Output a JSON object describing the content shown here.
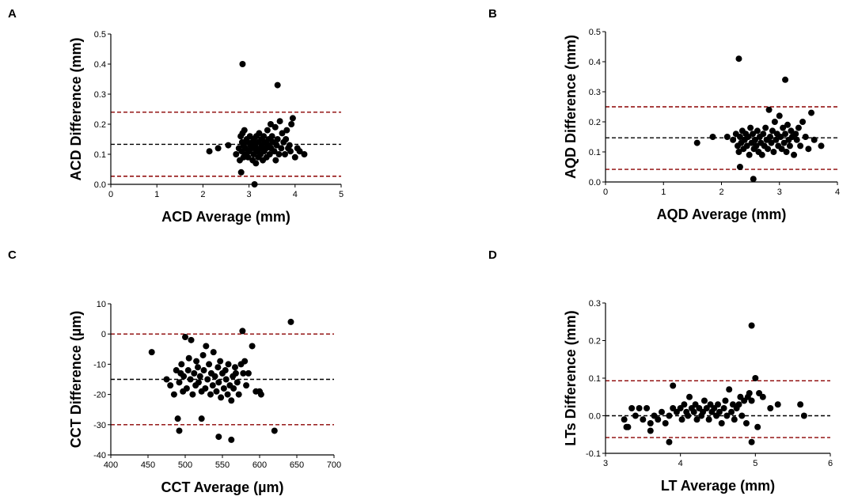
{
  "colors": {
    "points": "#000000",
    "mean_line": "#000000",
    "limit_line": "#8b0000",
    "axis": "#000000"
  },
  "chart_data": [
    {
      "panel": "A",
      "type": "scatter",
      "xlabel": "ACD Average (mm)",
      "ylabel": "ACD Difference (mm)",
      "xlim": [
        0,
        5
      ],
      "ylim": [
        0,
        0.5
      ],
      "xticks": [
        0,
        1,
        2,
        3,
        4,
        5
      ],
      "xtick_labels": [
        "0",
        "1",
        "2",
        "3",
        "4",
        "5"
      ],
      "yticks": [
        0,
        0.1,
        0.2,
        0.3,
        0.4,
        0.5
      ],
      "ytick_labels": [
        "0.0",
        "0.1",
        "0.2",
        "0.3",
        "0.4",
        "0.5"
      ],
      "mean": 0.133,
      "upper_loa": 0.24,
      "lower_loa": 0.027,
      "x": [
        2.14,
        2.33,
        2.55,
        2.72,
        2.78,
        2.8,
        2.82,
        2.83,
        2.84,
        2.85,
        2.86,
        2.88,
        2.88,
        2.9,
        2.92,
        2.93,
        2.95,
        2.97,
        2.98,
        3.0,
        3.02,
        3.03,
        3.05,
        3.07,
        3.08,
        3.1,
        3.1,
        3.12,
        3.13,
        3.15,
        3.16,
        3.18,
        3.2,
        3.2,
        3.22,
        3.24,
        3.25,
        3.27,
        3.28,
        3.3,
        3.32,
        3.33,
        3.35,
        3.37,
        3.38,
        3.4,
        3.42,
        3.43,
        3.45,
        3.47,
        3.48,
        3.5,
        3.52,
        3.55,
        3.57,
        3.58,
        3.6,
        3.62,
        3.65,
        3.67,
        3.7,
        3.72,
        3.75,
        3.78,
        3.8,
        3.82,
        3.85,
        3.88,
        3.9,
        3.92,
        3.95,
        4.0,
        4.05,
        4.1,
        4.2,
        2.86,
        3.62,
        3.12
      ],
      "y": [
        0.11,
        0.12,
        0.13,
        0.1,
        0.12,
        0.08,
        0.16,
        0.04,
        0.11,
        0.14,
        0.17,
        0.09,
        0.13,
        0.18,
        0.12,
        0.1,
        0.15,
        0.14,
        0.09,
        0.11,
        0.16,
        0.13,
        0.12,
        0.14,
        0.08,
        0.15,
        0.1,
        0.12,
        0.13,
        0.07,
        0.16,
        0.11,
        0.14,
        0.09,
        0.17,
        0.12,
        0.1,
        0.15,
        0.13,
        0.08,
        0.16,
        0.11,
        0.14,
        0.12,
        0.09,
        0.18,
        0.13,
        0.15,
        0.1,
        0.2,
        0.12,
        0.16,
        0.14,
        0.11,
        0.19,
        0.08,
        0.13,
        0.15,
        0.1,
        0.21,
        0.12,
        0.17,
        0.14,
        0.1,
        0.15,
        0.18,
        0.12,
        0.13,
        0.11,
        0.2,
        0.22,
        0.09,
        0.12,
        0.11,
        0.1,
        0.4,
        0.33,
        0.0
      ]
    },
    {
      "panel": "B",
      "type": "scatter",
      "xlabel": "AQD Average (mm)",
      "ylabel": "AQD Difference (mm)",
      "xlim": [
        0,
        4
      ],
      "ylim": [
        0,
        0.5
      ],
      "xticks": [
        0,
        1,
        2,
        3,
        4
      ],
      "xtick_labels": [
        "0",
        "1",
        "2",
        "3",
        "4"
      ],
      "yticks": [
        0,
        0.1,
        0.2,
        0.3,
        0.4,
        0.5
      ],
      "ytick_labels": [
        "0.0",
        "0.1",
        "0.2",
        "0.3",
        "0.4",
        "0.5"
      ],
      "mean": 0.147,
      "upper_loa": 0.25,
      "lower_loa": 0.042,
      "x": [
        1.58,
        1.85,
        2.1,
        2.2,
        2.25,
        2.28,
        2.3,
        2.32,
        2.34,
        2.36,
        2.38,
        2.4,
        2.42,
        2.44,
        2.46,
        2.48,
        2.5,
        2.52,
        2.54,
        2.56,
        2.58,
        2.6,
        2.62,
        2.64,
        2.66,
        2.68,
        2.7,
        2.72,
        2.74,
        2.76,
        2.78,
        2.8,
        2.82,
        2.84,
        2.86,
        2.88,
        2.9,
        2.92,
        2.94,
        2.96,
        2.98,
        3.0,
        3.02,
        3.04,
        3.06,
        3.08,
        3.1,
        3.12,
        3.14,
        3.16,
        3.18,
        3.2,
        3.22,
        3.25,
        3.28,
        3.3,
        3.33,
        3.36,
        3.4,
        3.45,
        3.5,
        3.55,
        3.6,
        3.72,
        2.3,
        2.32,
        2.55,
        3.1
      ],
      "y": [
        0.13,
        0.15,
        0.15,
        0.14,
        0.16,
        0.12,
        0.1,
        0.15,
        0.13,
        0.17,
        0.11,
        0.14,
        0.16,
        0.12,
        0.15,
        0.09,
        0.18,
        0.13,
        0.16,
        0.11,
        0.14,
        0.12,
        0.17,
        0.1,
        0.15,
        0.13,
        0.09,
        0.16,
        0.12,
        0.18,
        0.14,
        0.11,
        0.24,
        0.15,
        0.13,
        0.17,
        0.1,
        0.2,
        0.14,
        0.16,
        0.12,
        0.22,
        0.15,
        0.11,
        0.18,
        0.13,
        0.16,
        0.1,
        0.19,
        0.14,
        0.12,
        0.17,
        0.15,
        0.09,
        0.16,
        0.14,
        0.18,
        0.12,
        0.2,
        0.15,
        0.11,
        0.23,
        0.14,
        0.12,
        0.41,
        0.05,
        0.01,
        0.34
      ]
    },
    {
      "panel": "C",
      "type": "scatter",
      "xlabel": "CCT Average (µm)",
      "ylabel": "CCT Difference (µm)",
      "xlim": [
        400,
        700
      ],
      "ylim": [
        -40,
        10
      ],
      "xticks": [
        400,
        450,
        500,
        550,
        600,
        650,
        700
      ],
      "xtick_labels": [
        "400",
        "450",
        "500",
        "550",
        "600",
        "650",
        "700"
      ],
      "yticks": [
        -40,
        -30,
        -20,
        -10,
        0,
        10
      ],
      "ytick_labels": [
        "-40",
        "-30",
        "-20",
        "-10",
        "0",
        "10"
      ],
      "mean": -15,
      "upper_loa": 0,
      "lower_loa": -30,
      "x": [
        455,
        475,
        480,
        485,
        488,
        490,
        492,
        494,
        495,
        497,
        498,
        500,
        502,
        504,
        505,
        507,
        508,
        510,
        512,
        514,
        515,
        517,
        518,
        520,
        522,
        524,
        525,
        527,
        528,
        530,
        532,
        534,
        535,
        537,
        538,
        540,
        542,
        544,
        545,
        547,
        548,
        550,
        552,
        554,
        555,
        557,
        558,
        560,
        562,
        564,
        565,
        567,
        568,
        570,
        572,
        575,
        578,
        580,
        582,
        585,
        590,
        595,
        600,
        602,
        642,
        620,
        545,
        562,
        577,
        492,
        522
      ],
      "y": [
        -6,
        -15,
        -17,
        -20,
        -12,
        -28,
        -16,
        -13,
        -10,
        -19,
        -14,
        -1,
        -18,
        -12,
        -8,
        -15,
        -2,
        -20,
        -13,
        -17,
        -9,
        -11,
        -16,
        -14,
        -19,
        -7,
        -12,
        -18,
        -4,
        -15,
        -10,
        -20,
        -13,
        -17,
        -6,
        -14,
        -19,
        -11,
        -16,
        -9,
        -21,
        -13,
        -18,
        -12,
        -15,
        -20,
        -10,
        -17,
        -22,
        -14,
        -18,
        -11,
        -13,
        -16,
        -20,
        -10,
        -13,
        -9,
        -17,
        -13,
        -4,
        -19,
        -19,
        -20,
        4,
        -32,
        -34,
        -35,
        1,
        -32,
        -28
      ]
    },
    {
      "panel": "D",
      "type": "scatter",
      "xlabel": "LT Average (mm)",
      "ylabel": "LTs Difference (mm)",
      "xlim": [
        3,
        6
      ],
      "ylim": [
        -0.1,
        0.3
      ],
      "xticks": [
        3,
        4,
        5,
        6
      ],
      "xtick_labels": [
        "3",
        "4",
        "5",
        "6"
      ],
      "yticks": [
        -0.1,
        0,
        0.1,
        0.2,
        0.3
      ],
      "ytick_labels": [
        "-0.1",
        "0.0",
        "0.1",
        "0.2",
        "0.3"
      ],
      "mean": 0,
      "upper_loa": 0.093,
      "lower_loa": -0.058,
      "x": [
        3.25,
        3.3,
        3.35,
        3.4,
        3.45,
        3.5,
        3.55,
        3.6,
        3.6,
        3.65,
        3.7,
        3.75,
        3.8,
        3.85,
        3.9,
        3.95,
        4.0,
        4.02,
        4.05,
        4.08,
        4.1,
        4.12,
        4.15,
        4.18,
        4.2,
        4.22,
        4.25,
        4.28,
        4.3,
        4.32,
        4.35,
        4.38,
        4.4,
        4.42,
        4.45,
        4.48,
        4.5,
        4.52,
        4.55,
        4.58,
        4.6,
        4.62,
        4.65,
        4.68,
        4.7,
        4.72,
        4.75,
        4.78,
        4.8,
        4.82,
        4.85,
        4.88,
        4.9,
        4.92,
        4.95,
        5.0,
        5.05,
        5.1,
        5.2,
        5.3,
        5.6,
        5.65,
        3.9,
        4.95,
        5.03,
        4.95,
        3.28,
        3.85
      ],
      "y": [
        -0.01,
        -0.03,
        0.02,
        0.0,
        0.02,
        -0.01,
        0.02,
        -0.04,
        -0.02,
        0.0,
        -0.01,
        0.01,
        -0.02,
        0.0,
        0.02,
        0.01,
        0.02,
        -0.01,
        0.03,
        0.01,
        0.0,
        0.05,
        0.02,
        0.01,
        0.03,
        -0.01,
        0.02,
        0.0,
        0.01,
        0.04,
        0.02,
        -0.01,
        0.03,
        0.01,
        0.02,
        0.0,
        0.03,
        0.01,
        -0.02,
        0.02,
        0.04,
        0.0,
        0.07,
        0.01,
        0.03,
        -0.01,
        0.02,
        0.03,
        0.05,
        0.0,
        0.04,
        -0.02,
        0.05,
        0.06,
        0.04,
        0.1,
        0.06,
        0.05,
        0.02,
        0.03,
        0.03,
        0.0,
        0.08,
        -0.07,
        -0.03,
        0.24,
        -0.03,
        -0.07
      ]
    }
  ]
}
